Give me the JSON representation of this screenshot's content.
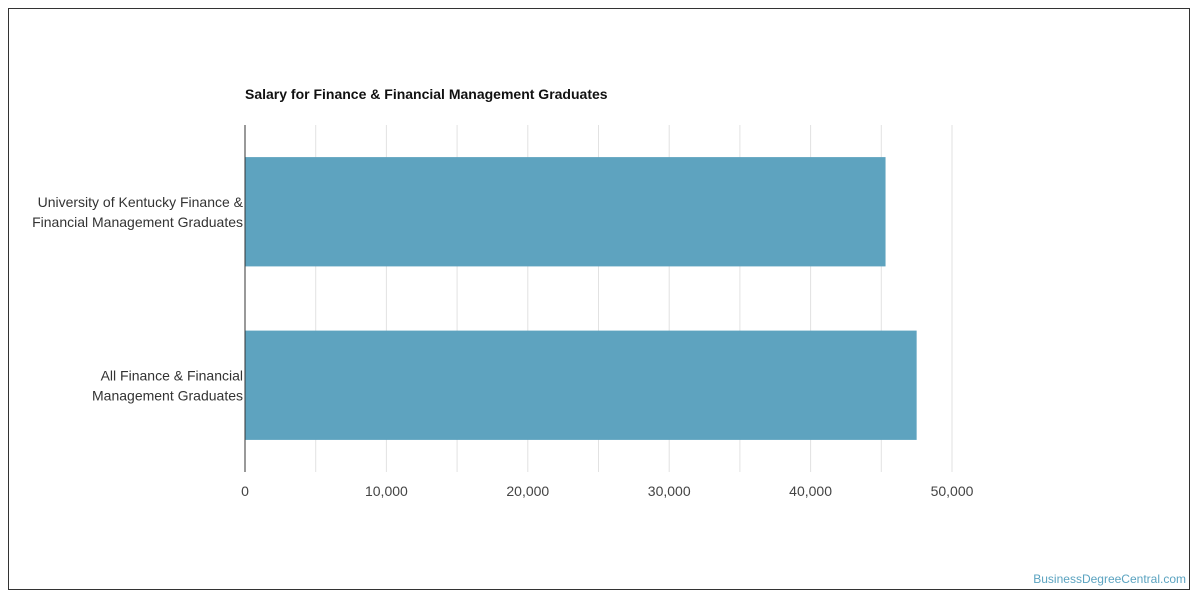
{
  "chart_data": {
    "type": "bar",
    "orientation": "horizontal",
    "title": "Salary for Finance & Financial Management Graduates",
    "categories": [
      [
        "University of Kentucky Finance &",
        "Financial Management Graduates"
      ],
      [
        "All Finance & Financial",
        "Management Graduates"
      ]
    ],
    "values": [
      45300,
      47500
    ],
    "xlim": [
      0,
      50000
    ],
    "xticks": [
      0,
      10000,
      20000,
      30000,
      40000,
      50000
    ],
    "xtick_labels": [
      "0",
      "10,000",
      "20,000",
      "30,000",
      "40,000",
      "50,000"
    ],
    "bar_color": "#5ea3bf",
    "grid": true,
    "legend": "none"
  },
  "credit": "BusinessDegreeCentral.com"
}
